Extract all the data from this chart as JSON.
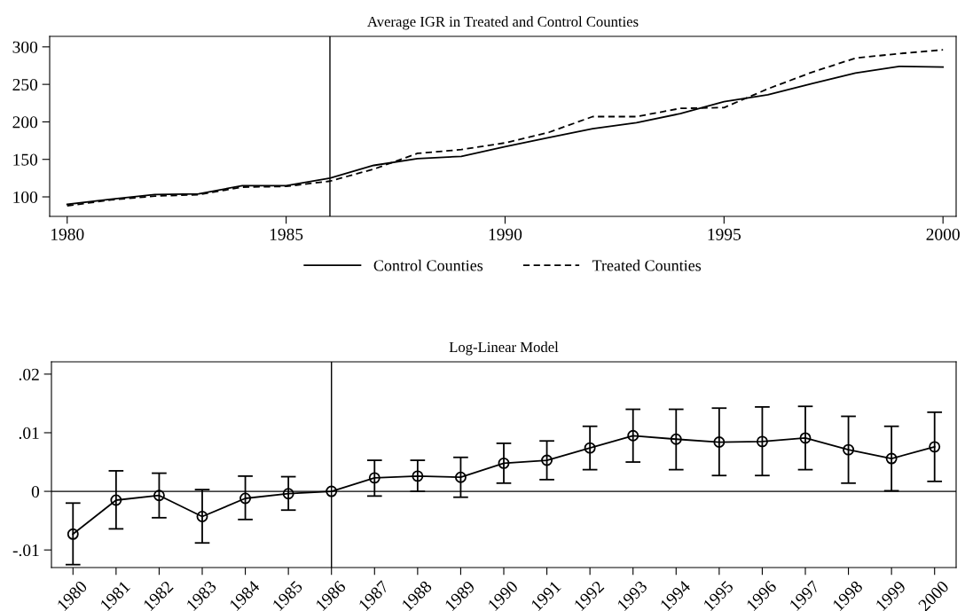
{
  "chart_data": [
    {
      "type": "line",
      "title": "Average IGR in Treated and Control Counties",
      "x": [
        1980,
        1981,
        1982,
        1983,
        1984,
        1985,
        1986,
        1987,
        1988,
        1989,
        1990,
        1991,
        1992,
        1993,
        1994,
        1995,
        1996,
        1997,
        1998,
        1999,
        2000
      ],
      "series": [
        {
          "name": "Control Counties",
          "color": "#000000",
          "line_style": "solid",
          "values": [
            90,
            97,
            103,
            104,
            115,
            115,
            125,
            142,
            151,
            154,
            167,
            179,
            191,
            199,
            211,
            227,
            236,
            251,
            265,
            274,
            273
          ]
        },
        {
          "name": "Treated Counties",
          "color": "#000000",
          "line_style": "dashed",
          "values": [
            88,
            96,
            101,
            103,
            113,
            114,
            121,
            137,
            158,
            163,
            172,
            186,
            207,
            207,
            218,
            219,
            244,
            266,
            285,
            291,
            296
          ]
        }
      ],
      "xlim": [
        1979.6,
        2000.3
      ],
      "xticks": [
        1980,
        1985,
        1990,
        1995,
        2000
      ],
      "ylim": [
        74,
        314
      ],
      "yticks": [
        100,
        150,
        200,
        250,
        300
      ],
      "ref_lines": [
        {
          "axis": "x",
          "value": 1986,
          "color": "#000000"
        }
      ],
      "grid": false,
      "legend": "bottom"
    },
    {
      "type": "line",
      "title": "Log-Linear Model",
      "categories": [
        "1980",
        "1981",
        "1982",
        "1983",
        "1984",
        "1985",
        "1986",
        "1987",
        "1988",
        "1989",
        "1990",
        "1991",
        "1992",
        "1993",
        "1994",
        "1995",
        "1996",
        "1997",
        "1998",
        "1999",
        "2000"
      ],
      "series": [
        {
          "color": "#000000",
          "marker": "circle",
          "line_style": "solid",
          "values": [
            -0.0073,
            -0.0015,
            -0.0007,
            -0.0043,
            -0.0012,
            -0.0004,
            0,
            0.0023,
            0.0026,
            0.0024,
            0.0048,
            0.0053,
            0.0074,
            0.0095,
            0.0089,
            0.0084,
            0.0085,
            0.0091,
            0.0071,
            0.0056,
            0.0076
          ],
          "errors": [
            [
              -0.0125,
              -0.002
            ],
            [
              -0.0064,
              0.0035
            ],
            [
              -0.0045,
              0.0031
            ],
            [
              -0.0088,
              0.0003
            ],
            [
              -0.0048,
              0.0026
            ],
            [
              -0.0032,
              0.0025
            ],
            null,
            [
              -0.0008,
              0.0053
            ],
            [
              0,
              0.0053
            ],
            [
              -0.001,
              0.0058
            ],
            [
              0.0014,
              0.0082
            ],
            [
              0.002,
              0.0086
            ],
            [
              0.0037,
              0.0111
            ],
            [
              0.005,
              0.014
            ],
            [
              0.0037,
              0.014
            ],
            [
              0.0027,
              0.0142
            ],
            [
              0.0027,
              0.0144
            ],
            [
              0.0037,
              0.0145
            ],
            [
              0.0014,
              0.0128
            ],
            [
              0.0001,
              0.0111
            ],
            [
              0.0017,
              0.0135
            ]
          ]
        }
      ],
      "ylim": [
        -0.013,
        0.0221
      ],
      "yticks": [
        {
          "value": -0.01,
          "label": "-.01"
        },
        0,
        {
          "value": 0.01,
          "label": ".01"
        },
        {
          "value": 0.02,
          "label": ".02"
        }
      ],
      "ref_lines": [
        {
          "axis": "y",
          "value": 0,
          "color": "#000000"
        },
        {
          "axis": "x",
          "value": "1986",
          "color": "#000000"
        }
      ],
      "grid": false,
      "legend": false
    }
  ]
}
